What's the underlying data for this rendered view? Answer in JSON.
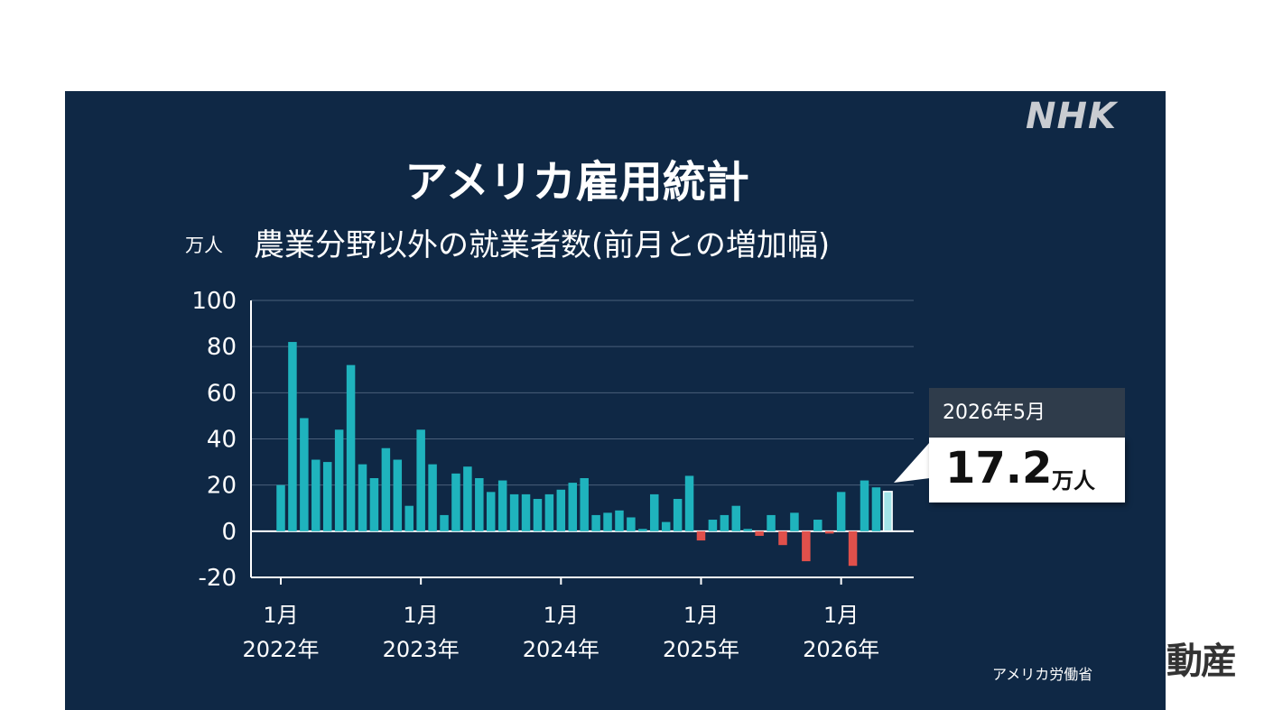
{
  "logo": "NHK",
  "corner_mark": "動産",
  "chart_data": {
    "type": "bar",
    "title": "アメリカ雇用統計",
    "subtitle": "農業分野以外の就業者数(前月との増加幅)",
    "unit": "万人",
    "ylim": [
      -20,
      100
    ],
    "yticks": [
      100,
      80,
      60,
      40,
      20,
      0,
      -20
    ],
    "grid": true,
    "xtick_labels": [
      {
        "month": "1月",
        "year": "2022年"
      },
      {
        "month": "1月",
        "year": "2023年"
      },
      {
        "month": "1月",
        "year": "2024年"
      },
      {
        "month": "1月",
        "year": "2025年"
      },
      {
        "month": "1月",
        "year": "2026年"
      }
    ],
    "start": "2022-01",
    "values": [
      20,
      82,
      49,
      31,
      30,
      44,
      72,
      29,
      23,
      36,
      31,
      11,
      44,
      29,
      7,
      25,
      28,
      23,
      17,
      22,
      16,
      16,
      14,
      16,
      18,
      21,
      23,
      7,
      8,
      9,
      6,
      1,
      16,
      4,
      14,
      24,
      -4,
      5,
      7,
      11,
      1,
      -2,
      7,
      -6,
      8,
      -13,
      5,
      -1,
      17,
      -15,
      22,
      19,
      17.2
    ],
    "positive_color": "#1fb3bd",
    "negative_color": "#e0504b",
    "highlight_color": "#a3e4e8",
    "callout": {
      "date": "2026年5月",
      "value": "17.2",
      "unit": "万人"
    },
    "source": "アメリカ労働省"
  }
}
